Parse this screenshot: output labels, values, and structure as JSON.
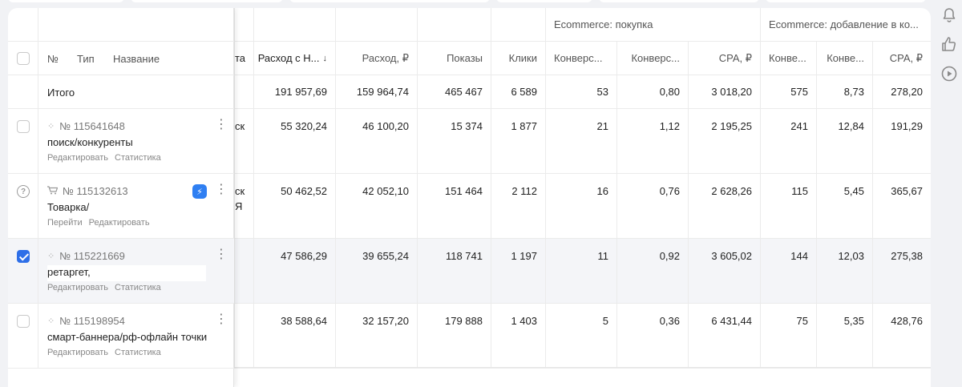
{
  "group_headers": {
    "ecom_purchase": "Ecommerce: покупка",
    "ecom_add_to_cart": "Ecommerce: добавление в ко..."
  },
  "left_header": {
    "num": "№",
    "type": "Тип",
    "name": "Название"
  },
  "hidden_col_fragment": "та",
  "columns": {
    "spend_nds": "Расход с Н...",
    "spend": "Расход, ₽",
    "impressions": "Показы",
    "clicks": "Клики",
    "conv1": "Конверс...",
    "conv_rate1": "Конверс...",
    "cpa1": "CPA, ₽",
    "conv2": "Конве...",
    "conv_rate2": "Конве...",
    "cpa2": "CPA, ₽"
  },
  "sort_arrow": "↓",
  "total": {
    "label": "Итого",
    "spend_nds": "191 957,69",
    "spend": "159 964,74",
    "impressions": "465 467",
    "clicks": "6 589",
    "conv1": "53",
    "conv_rate1": "0,80",
    "cpa1": "3 018,20",
    "conv2": "575",
    "conv_rate2": "8,73",
    "cpa2": "278,20"
  },
  "rows": [
    {
      "id": "№ 115641648",
      "name": "поиск/конкуренты",
      "actions": [
        "Редактировать",
        "Статистика"
      ],
      "frag": "ск",
      "frag2": "",
      "spend_nds": "55 320,24",
      "spend": "46 100,20",
      "impressions": "15 374",
      "clicks": "1 877",
      "conv1": "21",
      "conv_rate1": "1,12",
      "cpa1": "2 195,25",
      "conv2": "241",
      "conv_rate2": "12,84",
      "cpa2": "191,29"
    },
    {
      "id": "№ 115132613",
      "name": "Товарка/",
      "actions": [
        "Перейти",
        "Редактировать"
      ],
      "frag": "ск",
      "frag2": "Я",
      "spend_nds": "50 462,52",
      "spend": "42 052,10",
      "impressions": "151 464",
      "clicks": "2 112",
      "conv1": "16",
      "conv_rate1": "0,76",
      "cpa1": "2 628,26",
      "conv2": "115",
      "conv_rate2": "5,45",
      "cpa2": "365,67"
    },
    {
      "id": "№ 115221669",
      "name": "ретаргет,",
      "actions": [
        "Редактировать",
        "Статистика"
      ],
      "frag": "",
      "frag2": "",
      "spend_nds": "47 586,29",
      "spend": "39 655,24",
      "impressions": "118 741",
      "clicks": "1 197",
      "conv1": "11",
      "conv_rate1": "0,92",
      "cpa1": "3 605,02",
      "conv2": "144",
      "conv_rate2": "12,03",
      "cpa2": "275,38"
    },
    {
      "id": "№ 115198954",
      "name": "смарт-баннера/рф-офлайн точки",
      "actions": [
        "Редактировать",
        "Статистика"
      ],
      "frag": "",
      "frag2": "",
      "spend_nds": "38 588,64",
      "spend": "32 157,20",
      "impressions": "179 888",
      "clicks": "1 403",
      "conv1": "5",
      "conv_rate1": "0,36",
      "cpa1": "6 431,44",
      "conv2": "75",
      "conv_rate2": "5,35",
      "cpa2": "428,76"
    }
  ],
  "icons": {
    "bell": "bell-icon",
    "thumb": "thumbs-up-icon",
    "play": "play-icon",
    "bolt": "⚡",
    "kebab": "⋮",
    "help": "?"
  },
  "colors": {
    "accent": "#2e6fe8",
    "bolt_bg": "#2f7ff2"
  }
}
